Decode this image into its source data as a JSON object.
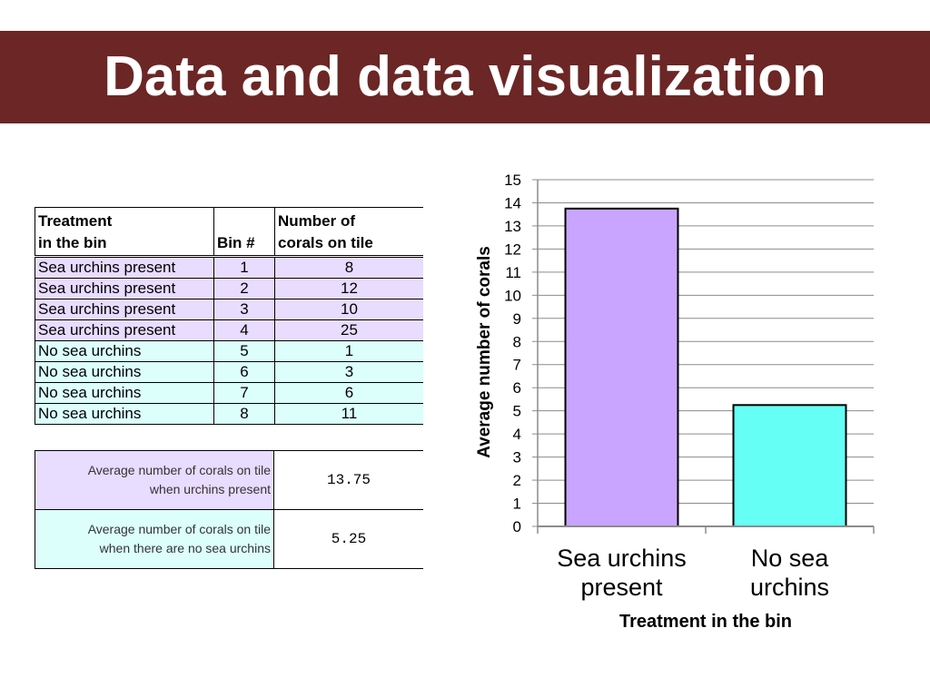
{
  "slide": {
    "title": "Data and data visualization"
  },
  "colors": {
    "title_bar": "#6b2625",
    "urchin": "#c9a5ff",
    "no_urchin": "#66fff5",
    "urchin_row": "#e8dcff",
    "no_urchin_row": "#dcfffc"
  },
  "table": {
    "headers": {
      "treatment_line1": "Treatment",
      "treatment_line2": "in the bin",
      "bin": "Bin #",
      "number_line1": "Number of",
      "number_line2": "corals on tile"
    },
    "rows": [
      {
        "treatment": "Sea urchins present",
        "bin": "1",
        "corals": "8"
      },
      {
        "treatment": "Sea urchins present",
        "bin": "2",
        "corals": "12"
      },
      {
        "treatment": "Sea urchins present",
        "bin": "3",
        "corals": "10"
      },
      {
        "treatment": "Sea urchins present",
        "bin": "4",
        "corals": "25"
      },
      {
        "treatment": "No sea urchins",
        "bin": "5",
        "corals": "1"
      },
      {
        "treatment": "No sea urchins",
        "bin": "6",
        "corals": "3"
      },
      {
        "treatment": "No sea urchins",
        "bin": "7",
        "corals": "6"
      },
      {
        "treatment": "No sea urchins",
        "bin": "8",
        "corals": "11"
      }
    ]
  },
  "averages": [
    {
      "label_line1": "Average number of corals on tile",
      "label_line2": "when urchins present",
      "value": "13.75"
    },
    {
      "label_line1": "Average number of corals on tile",
      "label_line2": "when there are no sea urchins",
      "value": "5.25"
    }
  ],
  "chart_data": {
    "type": "bar",
    "categories": [
      [
        "Sea urchins",
        "present"
      ],
      [
        "No sea",
        "urchins"
      ]
    ],
    "values": [
      13.75,
      5.25
    ],
    "bar_colors": [
      "#c9a5ff",
      "#66fff5"
    ],
    "title": "",
    "xlabel": "Treatment in the bin",
    "ylabel": "Average number of corals",
    "ylim": [
      0,
      15
    ],
    "yticks": [
      "0",
      "1",
      "2",
      "3",
      "4",
      "5",
      "6",
      "7",
      "8",
      "9",
      "10",
      "11",
      "12",
      "13",
      "14",
      "15"
    ],
    "grid": true,
    "legend": "none"
  }
}
